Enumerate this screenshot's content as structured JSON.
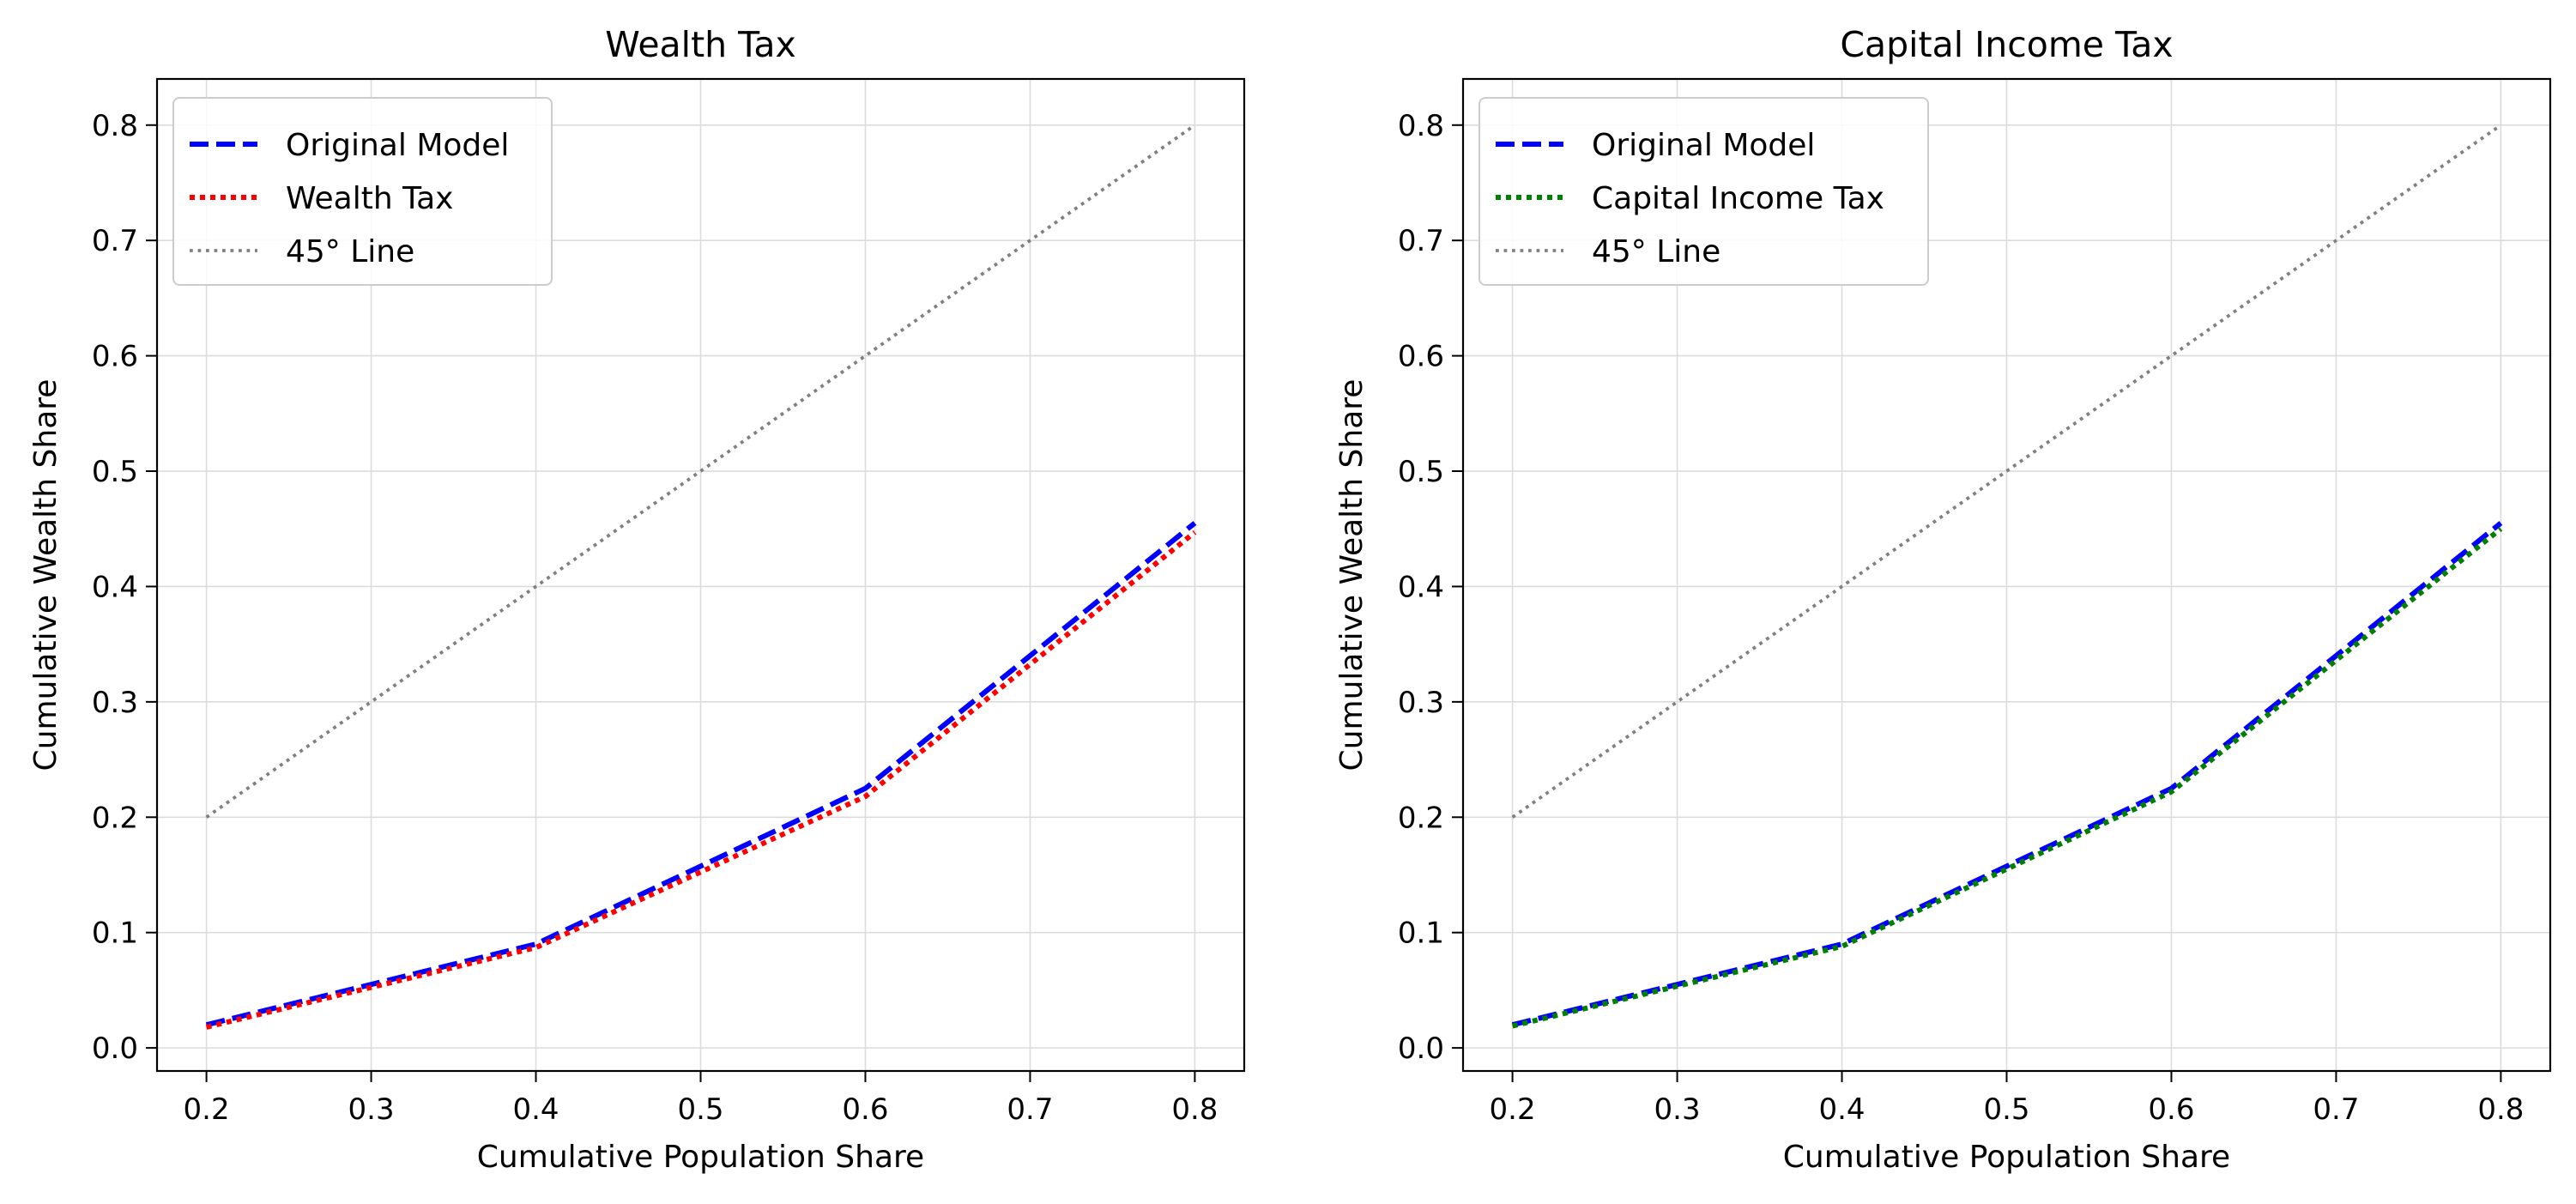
{
  "chart_data": [
    {
      "type": "line",
      "title": "Wealth Tax",
      "xlabel": "Cumulative Population Share",
      "ylabel": "Cumulative Wealth Share",
      "xlim": [
        0.17,
        0.83
      ],
      "ylim": [
        -0.02,
        0.84
      ],
      "xticks": [
        0.2,
        0.3,
        0.4,
        0.5,
        0.6,
        0.7,
        0.8
      ],
      "xtick_labels": [
        "0.2",
        "0.3",
        "0.4",
        "0.5",
        "0.6",
        "0.7",
        "0.8"
      ],
      "yticks": [
        0.0,
        0.1,
        0.2,
        0.3,
        0.4,
        0.5,
        0.6,
        0.7,
        0.8
      ],
      "ytick_labels": [
        "0.0",
        "0.1",
        "0.2",
        "0.3",
        "0.4",
        "0.5",
        "0.6",
        "0.7",
        "0.8"
      ],
      "grid": true,
      "legend_position": "upper-left",
      "x": [
        0.2,
        0.4,
        0.6,
        0.8
      ],
      "series": [
        {
          "name": "Original Model",
          "values": [
            0.02,
            0.09,
            0.225,
            0.455
          ],
          "color": "#0000ff",
          "style": "dashed"
        },
        {
          "name": "Wealth Tax",
          "values": [
            0.018,
            0.087,
            0.218,
            0.447
          ],
          "color": "#ff0000",
          "style": "dotted"
        },
        {
          "name": "45° Line",
          "values": [
            0.2,
            0.4,
            0.6,
            0.8
          ],
          "color": "#808080",
          "style": "dotted-thin"
        }
      ]
    },
    {
      "type": "line",
      "title": "Capital Income Tax",
      "xlabel": "Cumulative Population Share",
      "ylabel": "Cumulative Wealth Share",
      "xlim": [
        0.17,
        0.83
      ],
      "ylim": [
        -0.02,
        0.84
      ],
      "xticks": [
        0.2,
        0.3,
        0.4,
        0.5,
        0.6,
        0.7,
        0.8
      ],
      "xtick_labels": [
        "0.2",
        "0.3",
        "0.4",
        "0.5",
        "0.6",
        "0.7",
        "0.8"
      ],
      "yticks": [
        0.0,
        0.1,
        0.2,
        0.3,
        0.4,
        0.5,
        0.6,
        0.7,
        0.8
      ],
      "ytick_labels": [
        "0.0",
        "0.1",
        "0.2",
        "0.3",
        "0.4",
        "0.5",
        "0.6",
        "0.7",
        "0.8"
      ],
      "grid": true,
      "legend_position": "upper-left",
      "x": [
        0.2,
        0.4,
        0.6,
        0.8
      ],
      "series": [
        {
          "name": "Original Model",
          "values": [
            0.02,
            0.09,
            0.225,
            0.455
          ],
          "color": "#0000ff",
          "style": "dashed"
        },
        {
          "name": "Capital Income Tax",
          "values": [
            0.019,
            0.088,
            0.222,
            0.45
          ],
          "color": "#008000",
          "style": "dotted"
        },
        {
          "name": "45° Line",
          "values": [
            0.2,
            0.4,
            0.6,
            0.8
          ],
          "color": "#808080",
          "style": "dotted-thin"
        }
      ]
    }
  ]
}
